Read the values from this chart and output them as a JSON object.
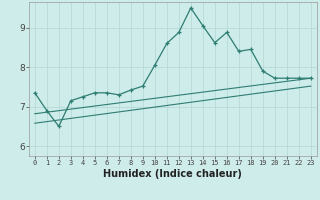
{
  "xlabel": "Humidex (Indice chaleur)",
  "background_color": "#ceecea",
  "grid_color": "#b8dbd8",
  "line_color": "#2e7d72",
  "xlim": [
    -0.5,
    23.5
  ],
  "ylim": [
    5.75,
    9.65
  ],
  "yticks": [
    6,
    7,
    8,
    9
  ],
  "xticks": [
    0,
    1,
    2,
    3,
    4,
    5,
    6,
    7,
    8,
    9,
    10,
    11,
    12,
    13,
    14,
    15,
    16,
    17,
    18,
    19,
    20,
    21,
    22,
    23
  ],
  "main_line_x": [
    0,
    1,
    2,
    3,
    4,
    5,
    6,
    7,
    8,
    9,
    10,
    11,
    12,
    13,
    14,
    15,
    16,
    17,
    18,
    19,
    20,
    21,
    22,
    23
  ],
  "main_line_y": [
    7.35,
    6.9,
    6.5,
    7.15,
    7.25,
    7.35,
    7.35,
    7.3,
    7.42,
    7.52,
    8.05,
    8.6,
    8.88,
    9.5,
    9.05,
    8.62,
    8.88,
    8.4,
    8.45,
    7.9,
    7.72,
    7.72,
    7.72,
    7.72
  ],
  "line2_x": [
    0,
    23
  ],
  "line2_y": [
    6.82,
    7.72
  ],
  "line3_x": [
    0,
    23
  ],
  "line3_y": [
    6.58,
    7.52
  ],
  "spine_color": "#999999",
  "xlabel_fontsize": 7,
  "xtick_fontsize": 5,
  "ytick_fontsize": 6.5
}
